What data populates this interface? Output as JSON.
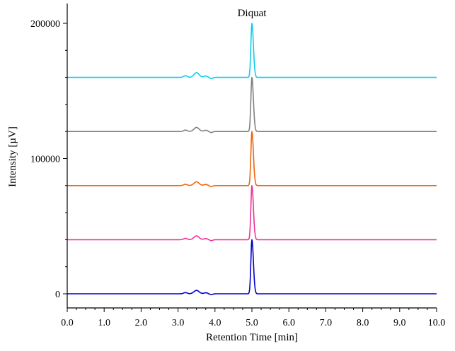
{
  "chart_data": {
    "type": "line",
    "xlabel": "Retention Time [min]",
    "ylabel": "Intensity [µV]",
    "xlim": [
      0,
      10
    ],
    "ylim": [
      -10000,
      215000
    ],
    "x_ticks": [
      0,
      1,
      2,
      3,
      4,
      5,
      6,
      7,
      8,
      9,
      10
    ],
    "x_tick_labels": [
      "0.0",
      "1.0",
      "2.0",
      "3.0",
      "4.0",
      "5.0",
      "6.0",
      "7.0",
      "8.0",
      "9.0",
      "10.0"
    ],
    "y_ticks": [
      0,
      100000,
      200000
    ],
    "y_tick_labels": [
      "0",
      "100000",
      "200000"
    ],
    "grid": false,
    "annotations": [
      {
        "text": "Diquat",
        "x": 5.0,
        "y": 207000
      }
    ],
    "series": [
      {
        "color": "#0000cc",
        "baseline": 0,
        "peak_rt": 5.0,
        "peak_height": 40000,
        "minor_peak_rt": 3.5,
        "minor_peak_height": 2500
      },
      {
        "color": "#ee3399",
        "baseline": 40000,
        "peak_rt": 5.0,
        "peak_height": 40000,
        "minor_peak_rt": 3.5,
        "minor_peak_height": 2800
      },
      {
        "color": "#ee6611",
        "baseline": 80000,
        "peak_rt": 5.0,
        "peak_height": 40000,
        "minor_peak_rt": 3.5,
        "minor_peak_height": 2800
      },
      {
        "color": "#808080",
        "baseline": 120000,
        "peak_rt": 5.0,
        "peak_height": 40000,
        "minor_peak_rt": 3.5,
        "minor_peak_height": 3000
      },
      {
        "color": "#11ccee",
        "baseline": 160000,
        "peak_rt": 5.0,
        "peak_height": 40000,
        "minor_peak_rt": 3.5,
        "minor_peak_height": 3500
      }
    ]
  }
}
